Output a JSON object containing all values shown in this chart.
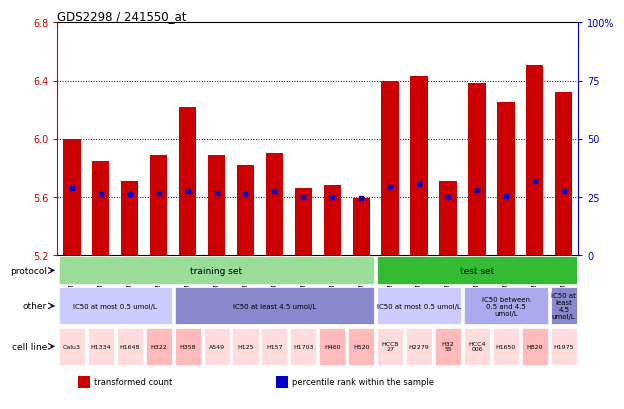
{
  "title": "GDS2298 / 241550_at",
  "samples": [
    "GSM99020",
    "GSM99022",
    "GSM99024",
    "GSM99029",
    "GSM99030",
    "GSM99019",
    "GSM99021",
    "GSM99023",
    "GSM99026",
    "GSM99031",
    "GSM99032",
    "GSM99035",
    "GSM99028",
    "GSM99018",
    "GSM99034",
    "GSM99025",
    "GSM99033",
    "GSM99027"
  ],
  "bar_values": [
    6.0,
    5.85,
    5.71,
    5.89,
    6.22,
    5.89,
    5.82,
    5.9,
    5.66,
    5.68,
    5.59,
    6.4,
    6.43,
    5.71,
    6.38,
    6.25,
    6.51,
    6.32
  ],
  "percentile_values": [
    5.66,
    5.62,
    5.62,
    5.63,
    5.64,
    5.63,
    5.62,
    5.64,
    5.6,
    5.6,
    5.59,
    5.67,
    5.69,
    5.6,
    5.65,
    5.61,
    5.71,
    5.64
  ],
  "ymin": 5.2,
  "ymax": 6.8,
  "yticks": [
    5.2,
    5.6,
    6.0,
    6.4,
    6.8
  ],
  "right_yticks": [
    0,
    25,
    50,
    75,
    100
  ],
  "right_ytick_labels": [
    "0",
    "25",
    "50",
    "75",
    "100%"
  ],
  "bar_color": "#cc0000",
  "percentile_color": "#0000cc",
  "left_tick_color": "#cc0000",
  "right_tick_color": "#0000bb",
  "protocol_row": {
    "label": "protocol",
    "segments": [
      {
        "text": "training set",
        "start": 0,
        "end": 11,
        "color": "#99dd99"
      },
      {
        "text": "test set",
        "start": 11,
        "end": 18,
        "color": "#33bb33"
      }
    ]
  },
  "other_row": {
    "label": "other",
    "segments": [
      {
        "text": "IC50 at most 0.5 umol/L",
        "start": 0,
        "end": 4,
        "color": "#ccccff"
      },
      {
        "text": "IC50 at least 4.5 umol/L",
        "start": 4,
        "end": 11,
        "color": "#8888cc"
      },
      {
        "text": "IC50 at most 0.5 umol/L",
        "start": 11,
        "end": 14,
        "color": "#ccccff"
      },
      {
        "text": "IC50 between\n0.5 and 4.5\numol/L",
        "start": 14,
        "end": 17,
        "color": "#aaaaee"
      },
      {
        "text": "IC50 at\nleast\n4.5\numol/L",
        "start": 17,
        "end": 18,
        "color": "#8888cc"
      }
    ]
  },
  "cell_line_row": {
    "label": "cell line",
    "cells": [
      {
        "text": "Calu3",
        "start": 0,
        "end": 1,
        "color": "#ffdddd"
      },
      {
        "text": "H1334",
        "start": 1,
        "end": 2,
        "color": "#ffdddd"
      },
      {
        "text": "H1648",
        "start": 2,
        "end": 3,
        "color": "#ffdddd"
      },
      {
        "text": "H322",
        "start": 3,
        "end": 4,
        "color": "#ffbbbb"
      },
      {
        "text": "H358",
        "start": 4,
        "end": 5,
        "color": "#ffbbbb"
      },
      {
        "text": "A549",
        "start": 5,
        "end": 6,
        "color": "#ffdddd"
      },
      {
        "text": "H125",
        "start": 6,
        "end": 7,
        "color": "#ffdddd"
      },
      {
        "text": "H157",
        "start": 7,
        "end": 8,
        "color": "#ffdddd"
      },
      {
        "text": "H1703",
        "start": 8,
        "end": 9,
        "color": "#ffdddd"
      },
      {
        "text": "H460",
        "start": 9,
        "end": 10,
        "color": "#ffbbbb"
      },
      {
        "text": "H520",
        "start": 10,
        "end": 11,
        "color": "#ffbbbb"
      },
      {
        "text": "HCC8\n27",
        "start": 11,
        "end": 12,
        "color": "#ffdddd"
      },
      {
        "text": "H2279",
        "start": 12,
        "end": 13,
        "color": "#ffdddd"
      },
      {
        "text": "H32\n55",
        "start": 13,
        "end": 14,
        "color": "#ffbbbb"
      },
      {
        "text": "HCC4\n006",
        "start": 14,
        "end": 15,
        "color": "#ffdddd"
      },
      {
        "text": "H1650",
        "start": 15,
        "end": 16,
        "color": "#ffdddd"
      },
      {
        "text": "H820",
        "start": 16,
        "end": 17,
        "color": "#ffbbbb"
      },
      {
        "text": "H1975",
        "start": 17,
        "end": 18,
        "color": "#ffdddd"
      }
    ]
  },
  "legend": [
    {
      "label": "transformed count",
      "color": "#cc0000"
    },
    {
      "label": "percentile rank within the sample",
      "color": "#0000cc"
    }
  ]
}
